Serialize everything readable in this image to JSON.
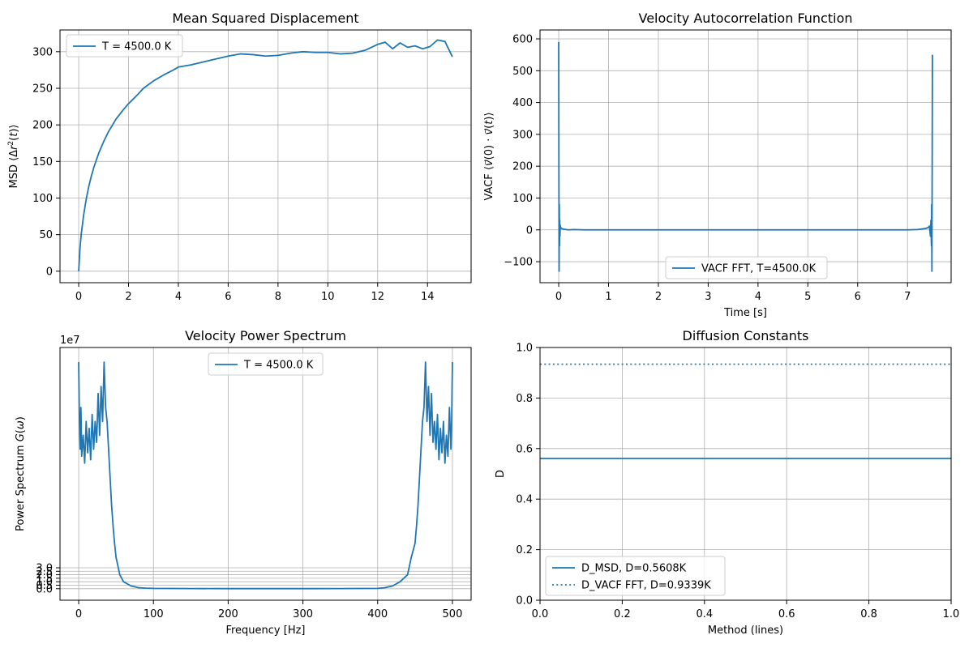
{
  "chart_data": [
    {
      "type": "line",
      "title": "Mean Squared Displacement",
      "xlabel": "",
      "ylabel": "MSD  ⟨Δr²(t)⟩",
      "xlim": [
        -0.75,
        15.75
      ],
      "ylim": [
        -15.7,
        329.7
      ],
      "xticks": [
        0,
        2,
        4,
        6,
        8,
        10,
        12,
        14
      ],
      "yticks": [
        0,
        50,
        100,
        150,
        200,
        250,
        300
      ],
      "grid": true,
      "legend_position": "upper left",
      "series": [
        {
          "name": "T = 4500.0 K",
          "color": "#1f77b4",
          "style": "solid",
          "x": [
            0,
            0.05,
            0.1,
            0.2,
            0.3,
            0.4,
            0.5,
            0.6,
            0.8,
            1.0,
            1.2,
            1.5,
            1.8,
            2.0,
            2.3,
            2.6,
            3.0,
            3.4,
            3.8,
            4.0,
            4.5,
            5.0,
            5.5,
            6.0,
            6.5,
            7.0,
            7.5,
            8.0,
            8.5,
            9.0,
            9.5,
            10.0,
            10.5,
            11.0,
            11.5,
            12.0,
            12.3,
            12.6,
            12.9,
            13.2,
            13.5,
            13.8,
            14.1,
            14.4,
            14.7,
            14.9,
            15.0
          ],
          "y": [
            0,
            30,
            50,
            77,
            98,
            115,
            129,
            141,
            161,
            177,
            191,
            208,
            221,
            229,
            239,
            250,
            260,
            268,
            275,
            279,
            282,
            286,
            290,
            294,
            297,
            296,
            294,
            295,
            298,
            300,
            299,
            299,
            297,
            298,
            302,
            310,
            313,
            304,
            312,
            306,
            308,
            304,
            307,
            316,
            314,
            300,
            293
          ]
        }
      ]
    },
    {
      "type": "line",
      "title": "Velocity Autocorrelation Function",
      "xlabel": "Time [s]",
      "ylabel": "VACF ⟨v⃗(0) · v⃗(t)⟩",
      "xlim": [
        -0.375,
        7.875
      ],
      "ylim": [
        -166,
        628
      ],
      "xticks": [
        0,
        1,
        2,
        3,
        4,
        5,
        6,
        7
      ],
      "yticks": [
        -100,
        0,
        100,
        200,
        300,
        400,
        500,
        600
      ],
      "grid": true,
      "legend_position": "lower center",
      "series": [
        {
          "name": "VACF FFT, T=4500.0K",
          "color": "#1f77b4",
          "style": "solid",
          "x": [
            0,
            0.004,
            0.008,
            0.012,
            0.016,
            0.02,
            0.025,
            0.03,
            0.035,
            0.04,
            0.05,
            0.06,
            0.08,
            0.1,
            0.15,
            0.2,
            0.3,
            0.5,
            1.0,
            1.5,
            2.0,
            2.5,
            3.0,
            3.5,
            4.0,
            4.5,
            5.0,
            5.5,
            6.0,
            6.5,
            7.0,
            7.2,
            7.3,
            7.38,
            7.42,
            7.44,
            7.46,
            7.47,
            7.48,
            7.485,
            7.49,
            7.495,
            7.5
          ],
          "y": [
            590,
            200,
            -130,
            80,
            -50,
            30,
            -20,
            15,
            10,
            8,
            5,
            4,
            3,
            2,
            1,
            0,
            1,
            0,
            0,
            0,
            0,
            0,
            0,
            0,
            0,
            0,
            0,
            0,
            0,
            0,
            0,
            1,
            3,
            5,
            8,
            12,
            -20,
            30,
            -50,
            80,
            -130,
            200,
            550
          ]
        }
      ]
    },
    {
      "type": "line",
      "title": "Velocity Power Spectrum",
      "xlabel": "Frequency [Hz]",
      "ylabel": "Power Spectrum G(ω)",
      "offset_text": "1e7",
      "xlim": [
        -25,
        525
      ],
      "ylim": [
        -1.65,
        34.6
      ],
      "y_unit_multiplier": 10000000,
      "xticks": [
        0,
        100,
        200,
        300,
        400,
        500
      ],
      "yticks": [
        0.0,
        0.5,
        1.0,
        1.5,
        2.0,
        2.5,
        3.0
      ],
      "ytick_labels": [
        "0.0",
        "0.5",
        "1.0",
        "1.5",
        "2.0",
        "2.5",
        "3.0"
      ],
      "grid": true,
      "legend_position": "upper center",
      "series": [
        {
          "name": "T = 4500.0 K",
          "color": "#1f77b4",
          "style": "solid",
          "x": [
            0,
            1,
            2,
            3,
            4,
            6,
            8,
            10,
            12,
            14,
            16,
            18,
            20,
            22,
            24,
            26,
            28,
            30,
            32,
            34,
            36,
            38,
            40,
            42,
            44,
            46,
            48,
            50,
            55,
            60,
            70,
            80,
            90,
            100,
            150,
            200,
            250,
            300,
            350,
            400,
            410,
            420,
            430,
            440,
            445,
            450,
            452,
            454,
            456,
            458,
            460,
            462,
            464,
            466,
            468,
            470,
            472,
            474,
            476,
            478,
            480,
            482,
            484,
            486,
            488,
            490,
            492,
            494,
            496,
            498,
            499,
            500
          ],
          "y": [
            32.5,
            24.0,
            20.0,
            26.0,
            19.0,
            22.0,
            18.0,
            24.0,
            19.5,
            23.0,
            18.5,
            25.0,
            20.0,
            24.0,
            21.0,
            28.0,
            22.0,
            29.0,
            24.0,
            32.5,
            26.0,
            24.0,
            20.0,
            16.0,
            12.0,
            9.0,
            6.5,
            4.5,
            2.0,
            1.0,
            0.4,
            0.15,
            0.08,
            0.05,
            0.02,
            0.01,
            0.01,
            0.01,
            0.02,
            0.05,
            0.15,
            0.4,
            1.0,
            2.0,
            4.5,
            6.5,
            9.0,
            12.0,
            16.0,
            20.0,
            24.0,
            26.0,
            32.5,
            24.0,
            29.0,
            22.0,
            28.0,
            21.0,
            24.0,
            20.0,
            25.0,
            18.5,
            23.0,
            19.5,
            24.0,
            18.0,
            22.0,
            19.0,
            26.0,
            20.0,
            24.0,
            32.5
          ]
        }
      ]
    },
    {
      "type": "line",
      "title": "Diffusion Constants",
      "xlabel": "Method (lines)",
      "ylabel": "D",
      "xlim": [
        0.0,
        1.0
      ],
      "ylim": [
        0.0,
        1.0
      ],
      "xticks": [
        0.0,
        0.2,
        0.4,
        0.6,
        0.8,
        1.0
      ],
      "yticks": [
        0.0,
        0.2,
        0.4,
        0.6,
        0.8,
        1.0
      ],
      "grid": true,
      "legend_position": "lower left",
      "series": [
        {
          "name": "D_MSD, D=0.5608K",
          "color": "#1f77b4",
          "style": "solid",
          "x": [
            0.0,
            1.0
          ],
          "y": [
            0.5608,
            0.5608
          ]
        },
        {
          "name": "D_VACF FFT, D=0.9339K",
          "color": "#1f77b4",
          "style": "dotted",
          "x": [
            0.0,
            1.0
          ],
          "y": [
            0.9339,
            0.9339
          ]
        }
      ]
    }
  ]
}
